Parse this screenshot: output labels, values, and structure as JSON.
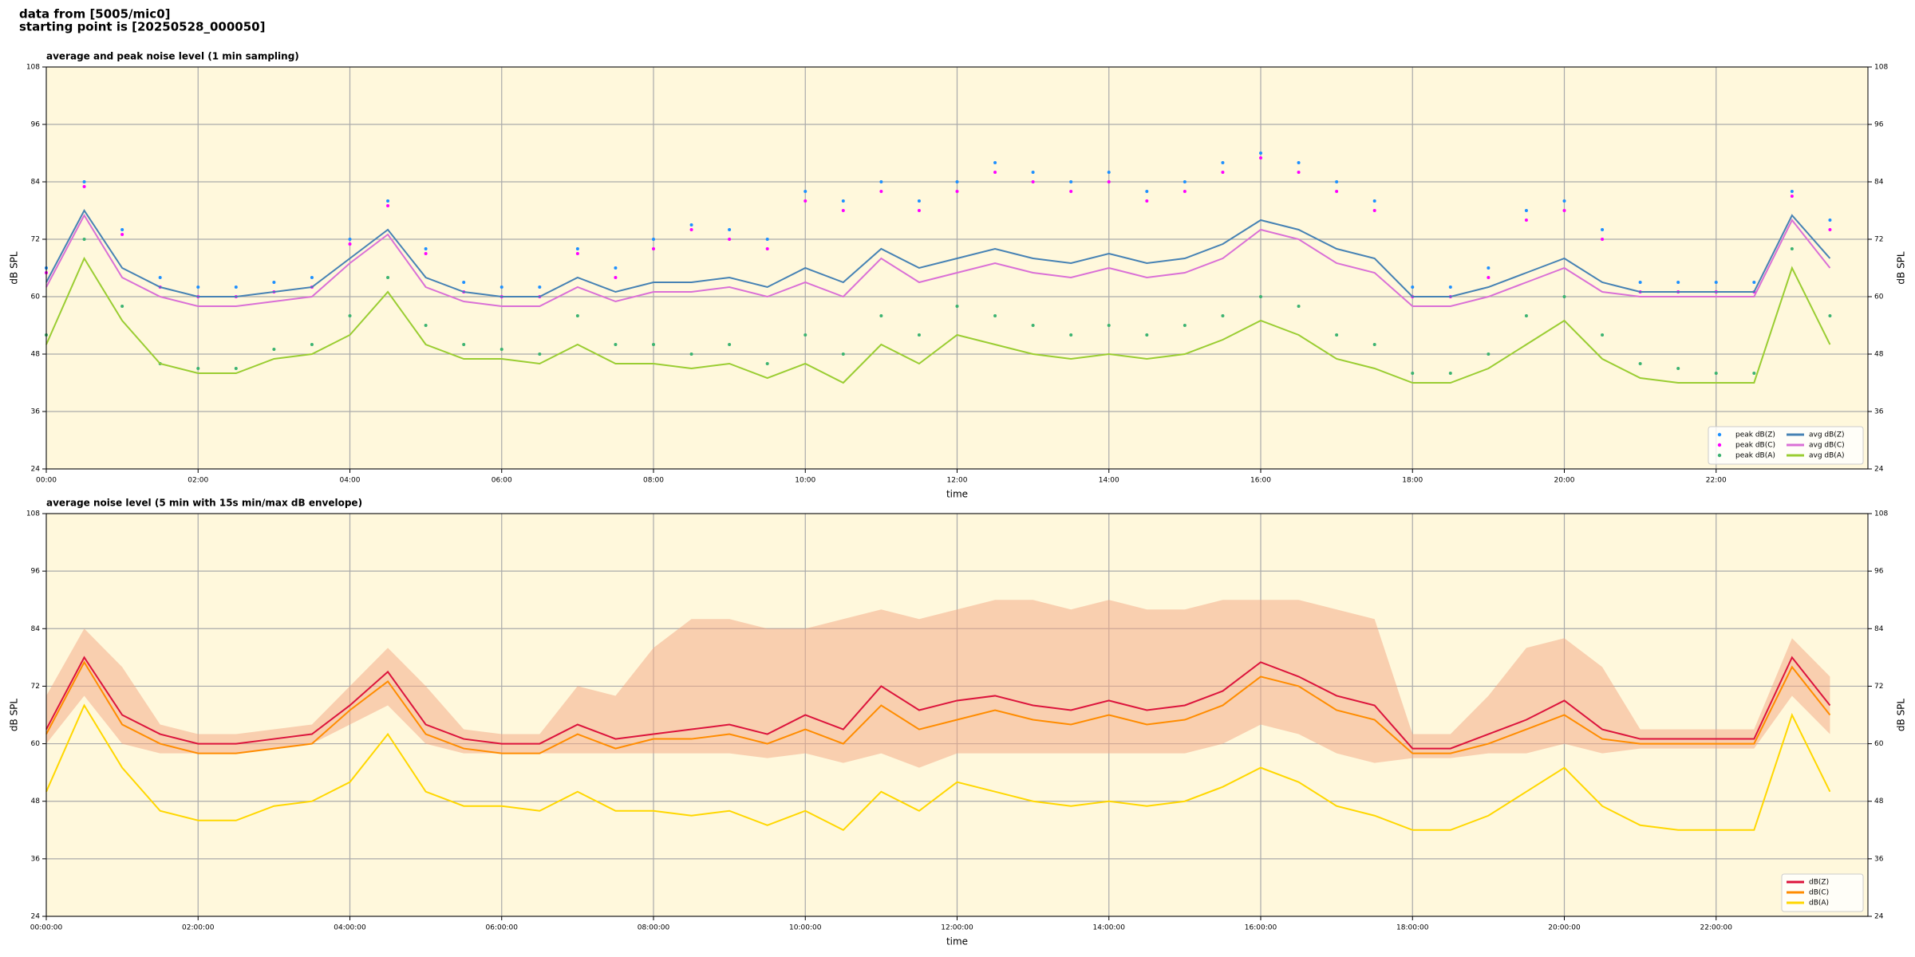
{
  "header": {
    "line1": "data from [5005/mic0]",
    "line2": "starting point is [20250528_000050]"
  },
  "chart_data": [
    {
      "type": "line",
      "title": "average and peak noise level (1 min sampling)",
      "xlabel": "time",
      "ylabel": "dB SPL",
      "y2label": "dB SPL",
      "xlim": [
        0,
        24
      ],
      "xticks": [
        {
          "value": 0,
          "label": "00:00"
        },
        {
          "value": 2,
          "label": "02:00"
        },
        {
          "value": 4,
          "label": "04:00"
        },
        {
          "value": 6,
          "label": "06:00"
        },
        {
          "value": 8,
          "label": "08:00"
        },
        {
          "value": 10,
          "label": "10:00"
        },
        {
          "value": 12,
          "label": "12:00"
        },
        {
          "value": 14,
          "label": "14:00"
        },
        {
          "value": 16,
          "label": "16:00"
        },
        {
          "value": 18,
          "label": "18:00"
        },
        {
          "value": 20,
          "label": "20:00"
        },
        {
          "value": 22,
          "label": "22:00"
        }
      ],
      "ylim": [
        24,
        108
      ],
      "yticks": [
        24,
        36,
        48,
        60,
        72,
        84,
        96,
        108
      ],
      "y2lim": [
        24,
        108
      ],
      "y2ticks": [
        24,
        36,
        48,
        60,
        72,
        84,
        96,
        108
      ],
      "grid": true,
      "legend": "lower right",
      "background": "#fff8dc",
      "x": [
        0,
        0.5,
        1,
        1.5,
        2,
        2.5,
        3,
        3.5,
        4,
        4.5,
        5,
        5.5,
        6,
        6.5,
        7,
        7.5,
        8,
        8.5,
        9,
        9.5,
        10,
        10.5,
        11,
        11.5,
        12,
        12.5,
        13,
        13.5,
        14,
        14.5,
        15,
        15.5,
        16,
        16.5,
        17,
        17.5,
        18,
        18.5,
        19,
        19.5,
        20,
        20.5,
        21,
        21.5,
        22,
        22.5,
        23,
        23.5
      ],
      "series": [
        {
          "name": "peak dB(Z)",
          "style": "dots",
          "color": "#1e90ff",
          "values": [
            66,
            84,
            74,
            64,
            62,
            62,
            63,
            64,
            72,
            80,
            70,
            63,
            62,
            62,
            70,
            66,
            72,
            75,
            74,
            72,
            82,
            80,
            84,
            80,
            84,
            88,
            86,
            84,
            86,
            82,
            84,
            88,
            90,
            88,
            84,
            80,
            62,
            62,
            66,
            78,
            80,
            74,
            63,
            63,
            63,
            63,
            82,
            76
          ]
        },
        {
          "name": "peak dB(C)",
          "style": "dots",
          "color": "#ff00ff",
          "values": [
            65,
            83,
            73,
            62,
            60,
            60,
            61,
            62,
            71,
            79,
            69,
            61,
            60,
            60,
            69,
            64,
            70,
            74,
            72,
            70,
            80,
            78,
            82,
            78,
            82,
            86,
            84,
            82,
            84,
            80,
            82,
            86,
            89,
            86,
            82,
            78,
            60,
            60,
            64,
            76,
            78,
            72,
            61,
            61,
            61,
            61,
            81,
            74
          ]
        },
        {
          "name": "peak dB(A)",
          "style": "dots",
          "color": "#3cb371",
          "values": [
            52,
            72,
            58,
            46,
            45,
            45,
            49,
            50,
            56,
            64,
            54,
            50,
            49,
            48,
            56,
            50,
            50,
            48,
            50,
            46,
            52,
            48,
            56,
            52,
            58,
            56,
            54,
            52,
            54,
            52,
            54,
            56,
            60,
            58,
            52,
            50,
            44,
            44,
            48,
            56,
            60,
            52,
            46,
            45,
            44,
            44,
            70,
            56
          ]
        },
        {
          "name": "avg dB(Z)",
          "style": "line",
          "color": "#4682b4",
          "values": [
            63,
            78,
            66,
            62,
            60,
            60,
            61,
            62,
            68,
            74,
            64,
            61,
            60,
            60,
            64,
            61,
            63,
            63,
            64,
            62,
            66,
            63,
            70,
            66,
            68,
            70,
            68,
            67,
            69,
            67,
            68,
            71,
            76,
            74,
            70,
            68,
            60,
            60,
            62,
            65,
            68,
            63,
            61,
            61,
            61,
            61,
            77,
            68
          ]
        },
        {
          "name": "avg dB(C)",
          "style": "line",
          "color": "#da70d6",
          "values": [
            62,
            77,
            64,
            60,
            58,
            58,
            59,
            60,
            67,
            73,
            62,
            59,
            58,
            58,
            62,
            59,
            61,
            61,
            62,
            60,
            63,
            60,
            68,
            63,
            65,
            67,
            65,
            64,
            66,
            64,
            65,
            68,
            74,
            72,
            67,
            65,
            58,
            58,
            60,
            63,
            66,
            61,
            60,
            60,
            60,
            60,
            76,
            66
          ]
        },
        {
          "name": "avg dB(A)",
          "style": "line",
          "color": "#9acd32",
          "values": [
            50,
            68,
            55,
            46,
            44,
            44,
            47,
            48,
            52,
            61,
            50,
            47,
            47,
            46,
            50,
            46,
            46,
            45,
            46,
            43,
            46,
            42,
            50,
            46,
            52,
            50,
            48,
            47,
            48,
            47,
            48,
            51,
            55,
            52,
            47,
            45,
            42,
            42,
            45,
            50,
            55,
            47,
            43,
            42,
            42,
            42,
            66,
            50
          ]
        }
      ]
    },
    {
      "type": "line",
      "title": "average noise level (5 min with 15s min/max dB envelope)",
      "xlabel": "time",
      "ylabel": "dB SPL",
      "y2label": "dB SPL",
      "xlim": [
        0,
        24
      ],
      "xticks": [
        {
          "value": 0,
          "label": "00:00:00"
        },
        {
          "value": 2,
          "label": "02:00:00"
        },
        {
          "value": 4,
          "label": "04:00:00"
        },
        {
          "value": 6,
          "label": "06:00:00"
        },
        {
          "value": 8,
          "label": "08:00:00"
        },
        {
          "value": 10,
          "label": "10:00:00"
        },
        {
          "value": 12,
          "label": "12:00:00"
        },
        {
          "value": 14,
          "label": "14:00:00"
        },
        {
          "value": 16,
          "label": "16:00:00"
        },
        {
          "value": 18,
          "label": "18:00:00"
        },
        {
          "value": 20,
          "label": "20:00:00"
        },
        {
          "value": 22,
          "label": "22:00:00"
        }
      ],
      "ylim": [
        24,
        108
      ],
      "yticks": [
        24,
        36,
        48,
        60,
        72,
        84,
        96,
        108
      ],
      "y2lim": [
        24,
        108
      ],
      "y2ticks": [
        24,
        36,
        48,
        60,
        72,
        84,
        96,
        108
      ],
      "grid": true,
      "legend": "lower right",
      "background": "#fff8dc",
      "x": [
        0,
        0.5,
        1,
        1.5,
        2,
        2.5,
        3,
        3.5,
        4,
        4.5,
        5,
        5.5,
        6,
        6.5,
        7,
        7.5,
        8,
        8.5,
        9,
        9.5,
        10,
        10.5,
        11,
        11.5,
        12,
        12.5,
        13,
        13.5,
        14,
        14.5,
        15,
        15.5,
        16,
        16.5,
        17,
        17.5,
        18,
        18.5,
        19,
        19.5,
        20,
        20.5,
        21,
        21.5,
        22,
        22.5,
        23,
        23.5
      ],
      "envelope": {
        "color": "#f4a582",
        "lower": [
          60,
          70,
          60,
          58,
          58,
          58,
          59,
          60,
          64,
          68,
          60,
          58,
          58,
          58,
          58,
          58,
          58,
          58,
          58,
          57,
          58,
          56,
          58,
          55,
          58,
          58,
          58,
          58,
          58,
          58,
          58,
          60,
          64,
          62,
          58,
          56,
          57,
          57,
          58,
          58,
          60,
          58,
          59,
          59,
          59,
          59,
          70,
          62
        ],
        "upper": [
          70,
          84,
          76,
          64,
          62,
          62,
          63,
          64,
          72,
          80,
          72,
          63,
          62,
          62,
          72,
          70,
          80,
          86,
          86,
          84,
          84,
          86,
          88,
          86,
          88,
          90,
          90,
          88,
          90,
          88,
          88,
          90,
          90,
          90,
          88,
          86,
          62,
          62,
          70,
          80,
          82,
          76,
          63,
          63,
          63,
          63,
          82,
          74
        ]
      },
      "series": [
        {
          "name": "dB(Z)",
          "style": "line",
          "color": "#dc143c",
          "values": [
            63,
            78,
            66,
            62,
            60,
            60,
            61,
            62,
            68,
            75,
            64,
            61,
            60,
            60,
            64,
            61,
            62,
            63,
            64,
            62,
            66,
            63,
            72,
            67,
            69,
            70,
            68,
            67,
            69,
            67,
            68,
            71,
            77,
            74,
            70,
            68,
            59,
            59,
            62,
            65,
            69,
            63,
            61,
            61,
            61,
            61,
            78,
            68
          ]
        },
        {
          "name": "dB(C)",
          "style": "line",
          "color": "#ff8c00",
          "values": [
            62,
            77,
            64,
            60,
            58,
            58,
            59,
            60,
            67,
            73,
            62,
            59,
            58,
            58,
            62,
            59,
            61,
            61,
            62,
            60,
            63,
            60,
            68,
            63,
            65,
            67,
            65,
            64,
            66,
            64,
            65,
            68,
            74,
            72,
            67,
            65,
            58,
            58,
            60,
            63,
            66,
            61,
            60,
            60,
            60,
            60,
            76,
            66
          ]
        },
        {
          "name": "dB(A)",
          "style": "line",
          "color": "#ffd700",
          "values": [
            50,
            68,
            55,
            46,
            44,
            44,
            47,
            48,
            52,
            62,
            50,
            47,
            47,
            46,
            50,
            46,
            46,
            45,
            46,
            43,
            46,
            42,
            50,
            46,
            52,
            50,
            48,
            47,
            48,
            47,
            48,
            51,
            55,
            52,
            47,
            45,
            42,
            42,
            45,
            50,
            55,
            47,
            43,
            42,
            42,
            42,
            66,
            50
          ]
        }
      ]
    }
  ]
}
